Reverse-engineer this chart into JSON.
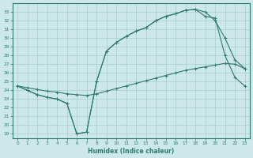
{
  "xlabel": "Humidex (Indice chaleur)",
  "bg_color": "#cce8e8",
  "grid_color": "#aacccc",
  "line_color": "#2e7b6b",
  "xlim": [
    -0.5,
    23.5
  ],
  "ylim": [
    18.5,
    34.0
  ],
  "xticks": [
    0,
    1,
    2,
    3,
    4,
    5,
    6,
    7,
    8,
    9,
    10,
    11,
    12,
    13,
    14,
    15,
    16,
    17,
    18,
    19,
    20,
    21,
    22,
    23
  ],
  "yticks": [
    19,
    20,
    21,
    22,
    23,
    24,
    25,
    26,
    27,
    28,
    29,
    30,
    31,
    32,
    33
  ],
  "line1_x": [
    0,
    1,
    2,
    3,
    4,
    5,
    6,
    7,
    8,
    9,
    10,
    11,
    12,
    13,
    14,
    15,
    16,
    17,
    18,
    19,
    20,
    21,
    22,
    23
  ],
  "line1_y": [
    24.5,
    24.0,
    23.5,
    23.2,
    23.0,
    22.5,
    19.0,
    19.2,
    25.0,
    28.5,
    29.5,
    30.2,
    30.8,
    31.2,
    32.0,
    32.5,
    32.8,
    33.2,
    33.3,
    33.0,
    32.0,
    30.0,
    27.5,
    26.5
  ],
  "line2_x": [
    0,
    1,
    2,
    3,
    4,
    5,
    6,
    7,
    8,
    9,
    10,
    11,
    12,
    13,
    14,
    15,
    16,
    17,
    18,
    19,
    20,
    21,
    22,
    23
  ],
  "line2_y": [
    24.5,
    24.0,
    23.5,
    23.2,
    23.0,
    22.5,
    19.0,
    19.2,
    25.0,
    28.5,
    29.5,
    30.2,
    30.8,
    31.2,
    32.0,
    32.5,
    32.8,
    33.2,
    33.3,
    32.5,
    32.3,
    28.0,
    25.5,
    24.5
  ],
  "line3_x": [
    0,
    1,
    2,
    3,
    4,
    5,
    6,
    7,
    8,
    9,
    10,
    11,
    12,
    13,
    14,
    15,
    16,
    17,
    18,
    19,
    20,
    21,
    22,
    23
  ],
  "line3_y": [
    24.5,
    24.3,
    24.1,
    23.9,
    23.8,
    23.6,
    23.5,
    23.4,
    23.6,
    23.9,
    24.2,
    24.5,
    24.8,
    25.1,
    25.4,
    25.7,
    26.0,
    26.3,
    26.5,
    26.7,
    26.9,
    27.1,
    27.0,
    26.5
  ]
}
